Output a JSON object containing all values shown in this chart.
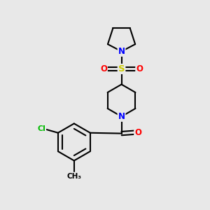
{
  "background_color": "#e8e8e8",
  "bond_color": "#000000",
  "bond_width": 1.5,
  "atom_colors": {
    "N": "#0000ff",
    "O": "#ff0000",
    "S": "#cccc00",
    "Cl": "#00bb00",
    "C": "#000000"
  },
  "font_size_atom": 8.5,
  "figsize": [
    3.0,
    3.0
  ],
  "dpi": 100
}
